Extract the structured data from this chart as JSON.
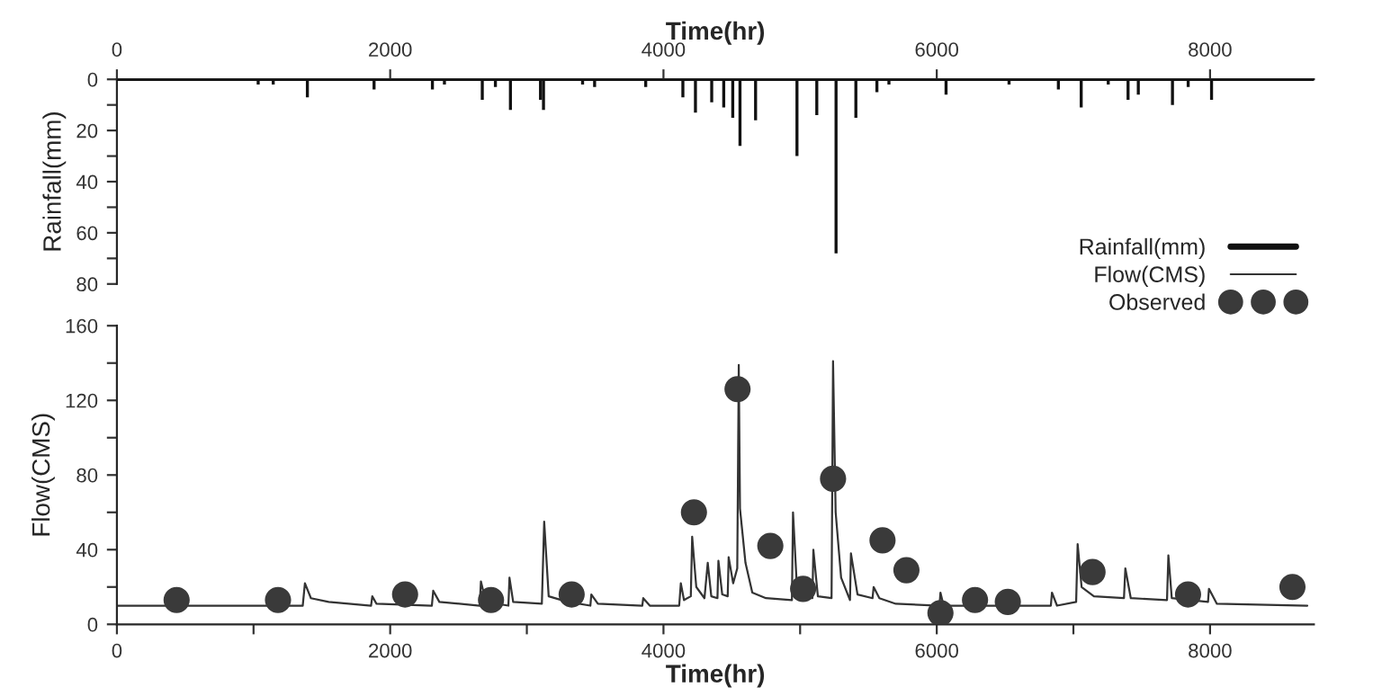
{
  "chart_data": [
    {
      "type": "bar",
      "xlabel": "Time(hr)",
      "ylabel": "Rainfall(mm)",
      "xlim": [
        0,
        8760
      ],
      "xticks": [
        0,
        2000,
        4000,
        6000,
        8000
      ],
      "ylim": [
        80,
        0
      ],
      "yticks": [
        0,
        {
          "value": 10,
          "label": null
        },
        20,
        {
          "value": 30,
          "label": null
        },
        40,
        {
          "value": 50,
          "label": null
        },
        60,
        {
          "value": 70,
          "label": null
        },
        80
      ],
      "series": [
        {
          "name": "Rainfall(mm)",
          "color": "#111111",
          "x": [
            1034,
            1144,
            1394,
            1882,
            2309,
            2397,
            2674,
            2770,
            2880,
            3100,
            3122,
            3408,
            3496,
            3870,
            4142,
            4234,
            4353,
            4441,
            4507,
            4560,
            4674,
            4977,
            5122,
            5263,
            5408,
            5562,
            5650,
            6068,
            6529,
            6890,
            7057,
            7255,
            7400,
            7475,
            7725,
            7840,
            8011
          ],
          "values": [
            2,
            2,
            7,
            4,
            4,
            2,
            8,
            3,
            12,
            8,
            12,
            2,
            3,
            3,
            7,
            13,
            9,
            11,
            15,
            26,
            16,
            30,
            14,
            68,
            15,
            5,
            2,
            6,
            2,
            4,
            11,
            2,
            8,
            6,
            10,
            3,
            8
          ]
        }
      ]
    },
    {
      "type": "line",
      "xlabel": "Time(hr)",
      "ylabel": "Flow(CMS)",
      "xlim": [
        0,
        8760
      ],
      "xticks": [
        0,
        {
          "value": 1000,
          "label": null
        },
        2000,
        {
          "value": 3000,
          "label": null
        },
        4000,
        {
          "value": 5000,
          "label": null
        },
        6000,
        {
          "value": 7000,
          "label": null
        },
        8000
      ],
      "ylim": [
        0,
        160
      ],
      "yticks": [
        0,
        {
          "value": 20,
          "label": null
        },
        40,
        {
          "value": 60,
          "label": null
        },
        80,
        {
          "value": 100,
          "label": null
        },
        120,
        {
          "value": 140,
          "label": null
        },
        160
      ],
      "legend": "top right",
      "series": [
        {
          "name": "Flow(CMS)",
          "color": "#333333",
          "marker": "none",
          "x": [
            0,
            1360,
            1376,
            1420,
            1550,
            1860,
            1869,
            1900,
            2305,
            2315,
            2360,
            2655,
            2664,
            2700,
            2865,
            2873,
            2900,
            3110,
            3127,
            3160,
            3300,
            3465,
            3472,
            3520,
            3845,
            3852,
            3900,
            4115,
            4127,
            4150,
            4200,
            4210,
            4240,
            4300,
            4324,
            4350,
            4395,
            4402,
            4430,
            4470,
            4477,
            4510,
            4540,
            4551,
            4560,
            4600,
            4650,
            4750,
            4940,
            4948,
            4980,
            5090,
            5097,
            5130,
            5230,
            5241,
            5260,
            5300,
            5365,
            5372,
            5420,
            5530,
            5538,
            5580,
            5700,
            6020,
            6027,
            6050,
            6835,
            6843,
            6880,
            7020,
            7031,
            7060,
            7150,
            7370,
            7380,
            7420,
            7685,
            7695,
            7720,
            7985,
            7992,
            8050,
            8712
          ],
          "values": [
            10,
            10,
            22,
            14,
            12,
            10,
            15,
            11,
            10,
            18,
            12,
            10,
            23,
            12,
            10,
            25,
            12,
            11,
            55,
            15,
            12,
            10,
            16,
            11,
            10,
            14,
            10,
            10,
            22,
            13,
            15,
            47,
            20,
            14,
            33,
            15,
            14,
            34,
            16,
            15,
            36,
            22,
            30,
            139,
            62,
            33,
            17,
            14,
            13,
            60,
            15,
            14,
            40,
            15,
            14,
            141,
            60,
            25,
            13,
            38,
            16,
            14,
            20,
            14,
            11,
            10,
            17,
            10,
            10,
            17,
            10,
            12,
            43,
            20,
            15,
            14,
            30,
            14,
            13,
            37,
            14,
            12,
            19,
            11,
            10
          ]
        },
        {
          "name": "Observed",
          "type": "scatter",
          "color": "#3a3a3a",
          "marker": "circle",
          "x": [
            437,
            1179,
            2109,
            2738,
            3328,
            4223,
            4542,
            4782,
            5022,
            5241,
            5603,
            5778,
            6027,
            6280,
            6520,
            7140,
            7839,
            8603
          ],
          "values": [
            13,
            13,
            16,
            13,
            16,
            60,
            126,
            42,
            19,
            78,
            45,
            29,
            6,
            13,
            12,
            28,
            16,
            20
          ]
        }
      ]
    }
  ]
}
